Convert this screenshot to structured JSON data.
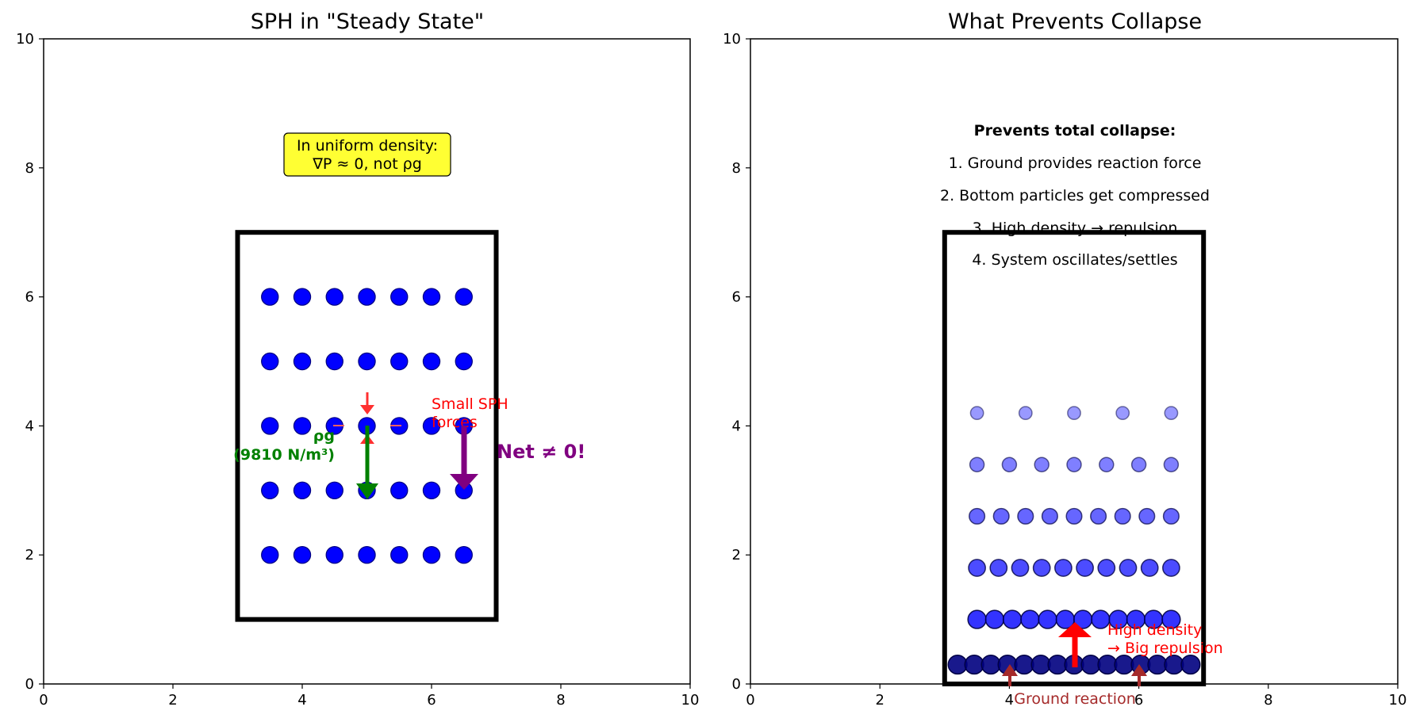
{
  "panels": [
    {
      "id": "left",
      "title": "SPH in \"Steady State\"",
      "xlim": [
        0,
        10
      ],
      "ylim": [
        0,
        10
      ],
      "xticks": [
        0,
        2,
        4,
        6,
        8,
        10
      ],
      "yticks": [
        0,
        2,
        4,
        6,
        8,
        10
      ]
    },
    {
      "id": "right",
      "title": "What Prevents Collapse",
      "xlim": [
        0,
        10
      ],
      "ylim": [
        0,
        10
      ],
      "xticks": [
        0,
        2,
        4,
        6,
        8,
        10
      ],
      "yticks": [
        0,
        2,
        4,
        6,
        8,
        10
      ]
    }
  ],
  "left": {
    "container": {
      "x0": 3,
      "y0": 1,
      "x1": 7,
      "y1": 7
    },
    "particle_grid": {
      "xs": [
        3.5,
        4.0,
        4.5,
        5.0,
        5.5,
        6.0,
        6.5
      ],
      "ys": [
        2,
        3,
        4,
        5,
        6
      ],
      "color": "#0000ff"
    },
    "note_box": {
      "lines": [
        "In uniform density:",
        "∇P ≈ 0, not ρg"
      ],
      "x": 5,
      "y": 8.2,
      "fill": "#ffff33"
    },
    "gravity_label": {
      "lines": [
        "ρg",
        "(9810 N/m³)"
      ],
      "color": "#008000"
    },
    "sph_label": {
      "lines": [
        "Small SPH",
        "forces"
      ],
      "color": "#ff0000"
    },
    "net_label": {
      "text": "Net ≠ 0!",
      "color": "#800080"
    }
  },
  "right": {
    "container": {
      "x0": 3,
      "y0": 0,
      "x1": 7,
      "y1": 7
    },
    "text_lines": [
      "Prevents total collapse:",
      "1. Ground provides reaction force",
      "2. Bottom particles get compressed",
      "3. High density → repulsion",
      "4. System oscillates/settles"
    ],
    "layers": [
      {
        "y": 0.3,
        "n": 15,
        "alpha": 0.9,
        "r": 0.145,
        "color": "#000080"
      },
      {
        "y": 1.0,
        "n": 12,
        "alpha": 0.8,
        "r": 0.14,
        "color": "#0000ff"
      },
      {
        "y": 1.8,
        "n": 10,
        "alpha": 0.7,
        "r": 0.13,
        "color": "#0000ff"
      },
      {
        "y": 2.6,
        "n": 9,
        "alpha": 0.6,
        "r": 0.12,
        "color": "#0000ff"
      },
      {
        "y": 3.4,
        "n": 7,
        "alpha": 0.5,
        "r": 0.11,
        "color": "#0000ff"
      },
      {
        "y": 4.2,
        "n": 5,
        "alpha": 0.4,
        "r": 0.1,
        "color": "#0000ff"
      }
    ],
    "repulsion_label": {
      "lines": [
        "High density",
        "→ Big repulsion"
      ],
      "color": "#ff0000"
    },
    "ground_label": {
      "text": "Ground reaction",
      "color": "#a52a2a"
    }
  }
}
